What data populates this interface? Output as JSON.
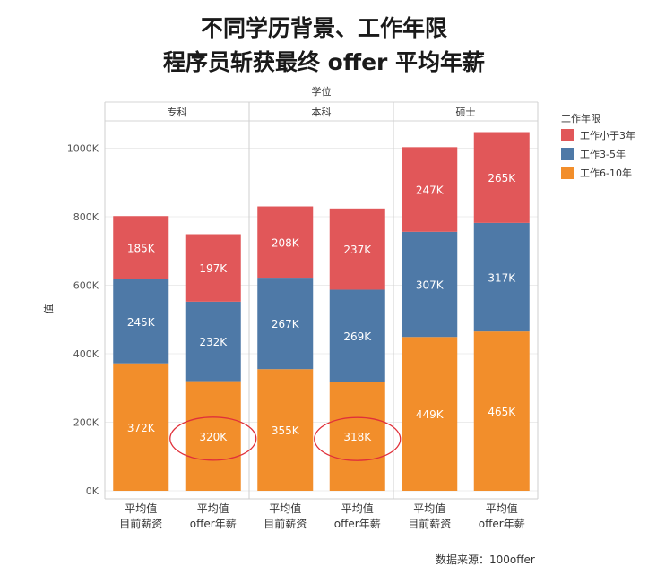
{
  "title_line1": "不同学历背景、工作年限",
  "title_line2": "程序员斩获最终 offer 平均年薪",
  "source": "数据来源：100offer",
  "chart_data": {
    "type": "bar",
    "stacked": true,
    "column_header": "学位",
    "groups": [
      "专科",
      "本科",
      "硕士"
    ],
    "bar_labels": [
      [
        "平均值",
        "目前薪资"
      ],
      [
        "平均值",
        "offer年薪"
      ]
    ],
    "ylabel": "值",
    "ylim": [
      0,
      1100000
    ],
    "yticks": [
      0,
      200000,
      400000,
      600000,
      800000,
      1000000
    ],
    "ytick_labels": [
      "0K",
      "200K",
      "400K",
      "600K",
      "800K",
      "1000K"
    ],
    "legend_title": "工作年限",
    "series": [
      {
        "name": "工作6-10年",
        "color": "#f28e2b",
        "values": [
          372,
          320,
          355,
          318,
          449,
          465
        ],
        "labels": [
          "372K",
          "320K",
          "355K",
          "318K",
          "449K",
          "465K"
        ]
      },
      {
        "name": "工作3-5年",
        "color": "#4e79a7",
        "values": [
          245,
          232,
          267,
          269,
          307,
          317
        ],
        "labels": [
          "245K",
          "232K",
          "267K",
          "269K",
          "307K",
          "317K"
        ]
      },
      {
        "name": "工作小于3年",
        "color": "#e15759",
        "values": [
          185,
          197,
          208,
          237,
          247,
          265
        ],
        "labels": [
          "185K",
          "197K",
          "208K",
          "237K",
          "247K",
          "265K"
        ]
      }
    ],
    "legend_order": [
      "工作小于3年",
      "工作3-5年",
      "工作6-10年"
    ],
    "highlighted": [
      1,
      3
    ]
  }
}
